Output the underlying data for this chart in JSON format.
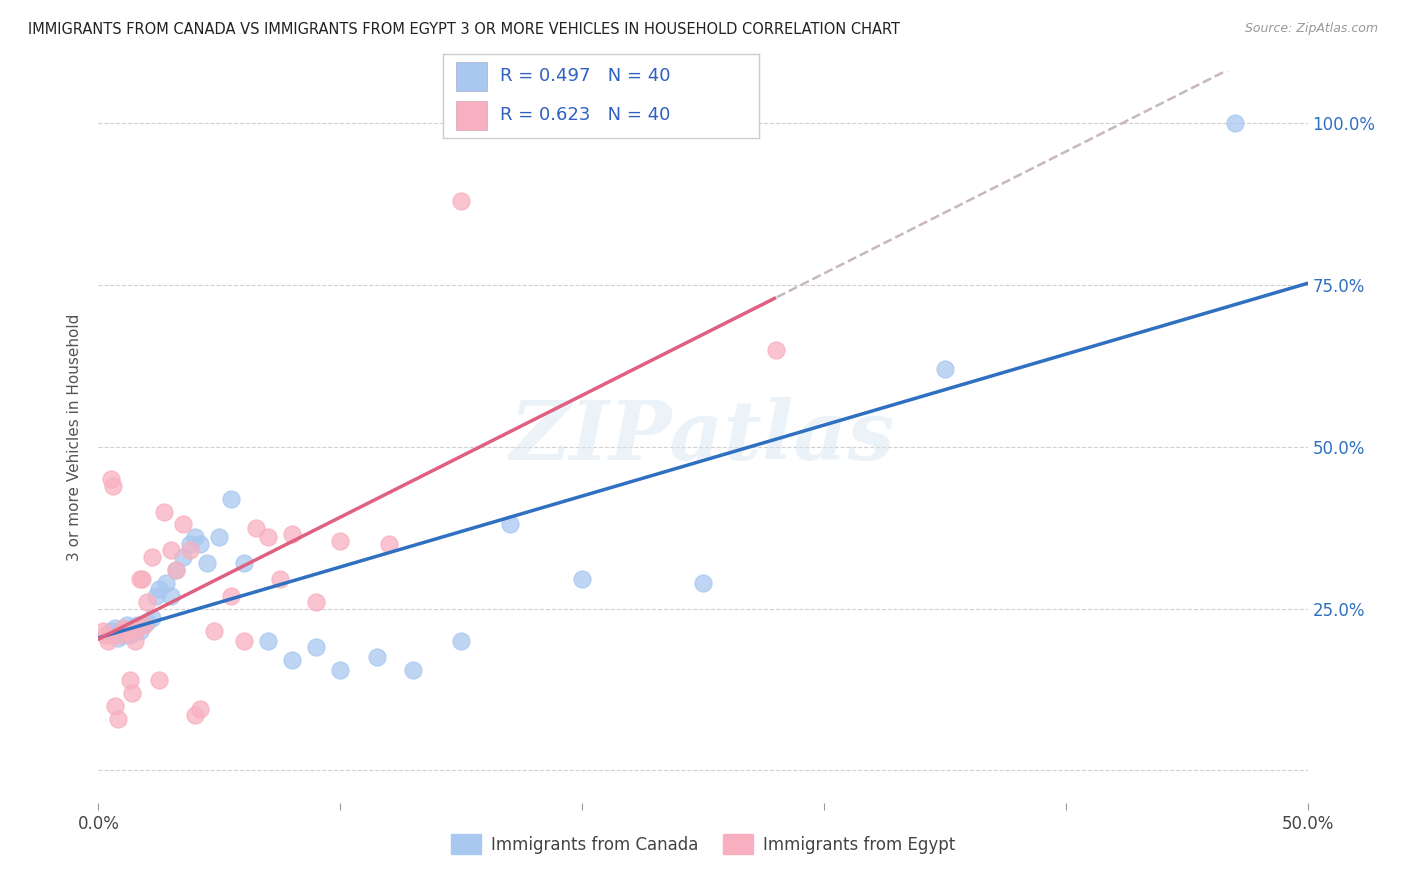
{
  "title": "IMMIGRANTS FROM CANADA VS IMMIGRANTS FROM EGYPT 3 OR MORE VEHICLES IN HOUSEHOLD CORRELATION CHART",
  "source": "Source: ZipAtlas.com",
  "ylabel": "3 or more Vehicles in Household",
  "xlim": [
    0.0,
    0.5
  ],
  "ylim": [
    -0.05,
    1.08
  ],
  "canada_color": "#a8c8f0",
  "egypt_color": "#f8b0c0",
  "trend_canada_color": "#3070c0",
  "trend_egypt_color": "#e06080",
  "trend_dashed_color": "#c8b8b8",
  "watermark": "ZIPatlas",
  "legend_r1_text": "R = 0.497   N = 40",
  "legend_r2_text": "R = 0.623   N = 40",
  "legend_text_color": "#3060c0",
  "canada_scatter_x": [
    0.005,
    0.007,
    0.008,
    0.009,
    0.01,
    0.011,
    0.012,
    0.013,
    0.014,
    0.015,
    0.016,
    0.017,
    0.018,
    0.02,
    0.022,
    0.024,
    0.025,
    0.028,
    0.03,
    0.032,
    0.035,
    0.038,
    0.04,
    0.042,
    0.045,
    0.05,
    0.055,
    0.06,
    0.07,
    0.08,
    0.09,
    0.1,
    0.115,
    0.13,
    0.15,
    0.17,
    0.2,
    0.25,
    0.35,
    0.47
  ],
  "canada_scatter_y": [
    0.215,
    0.22,
    0.205,
    0.215,
    0.218,
    0.21,
    0.225,
    0.21,
    0.22,
    0.215,
    0.225,
    0.215,
    0.225,
    0.23,
    0.235,
    0.27,
    0.28,
    0.29,
    0.27,
    0.31,
    0.33,
    0.35,
    0.36,
    0.35,
    0.32,
    0.36,
    0.42,
    0.32,
    0.2,
    0.17,
    0.19,
    0.155,
    0.175,
    0.155,
    0.2,
    0.38,
    0.295,
    0.29,
    0.62,
    1.0
  ],
  "egypt_scatter_x": [
    0.002,
    0.003,
    0.004,
    0.005,
    0.006,
    0.007,
    0.008,
    0.009,
    0.01,
    0.011,
    0.012,
    0.013,
    0.014,
    0.015,
    0.016,
    0.017,
    0.018,
    0.019,
    0.02,
    0.022,
    0.025,
    0.027,
    0.03,
    0.032,
    0.035,
    0.038,
    0.04,
    0.042,
    0.048,
    0.055,
    0.06,
    0.065,
    0.07,
    0.075,
    0.08,
    0.09,
    0.1,
    0.12,
    0.15,
    0.28
  ],
  "egypt_scatter_y": [
    0.215,
    0.21,
    0.2,
    0.45,
    0.44,
    0.1,
    0.08,
    0.21,
    0.22,
    0.215,
    0.215,
    0.14,
    0.12,
    0.2,
    0.22,
    0.295,
    0.295,
    0.225,
    0.26,
    0.33,
    0.14,
    0.4,
    0.34,
    0.31,
    0.38,
    0.34,
    0.085,
    0.095,
    0.215,
    0.27,
    0.2,
    0.375,
    0.36,
    0.295,
    0.365,
    0.26,
    0.355,
    0.35,
    0.88,
    0.65
  ],
  "background_color": "#ffffff",
  "grid_color": "#d0d0d0"
}
